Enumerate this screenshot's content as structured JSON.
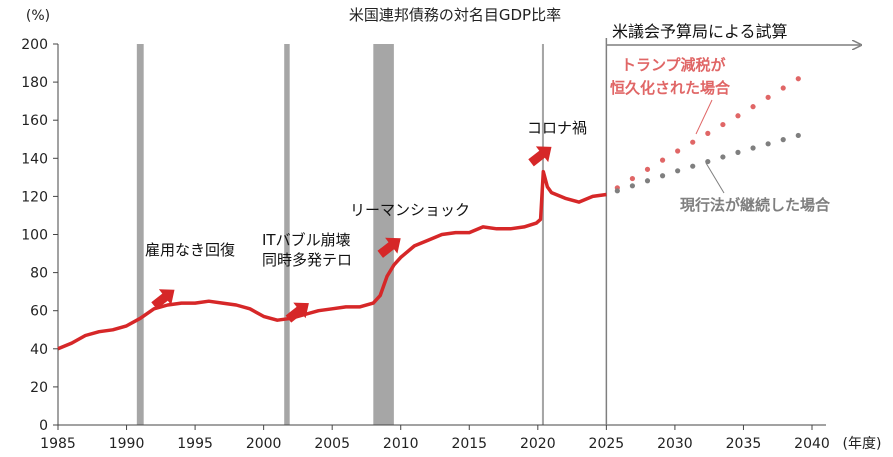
{
  "chart_data": {
    "type": "line",
    "title": "米国連邦債務の対名目GDP比率",
    "ylabel": "(%)",
    "xlabel": "(年度)",
    "ylim": [
      0,
      200
    ],
    "xlim": [
      1985,
      2040
    ],
    "yticks": [
      0,
      20,
      40,
      60,
      80,
      100,
      120,
      140,
      160,
      180,
      200
    ],
    "xticks": [
      1985,
      1990,
      1995,
      2000,
      2005,
      2010,
      2015,
      2020,
      2025,
      2030,
      2035,
      2040
    ],
    "grid": false,
    "colors": {
      "actual": "#d62728",
      "trump": "#e06666",
      "current": "#7f7f7f",
      "recession": "#a6a6a6",
      "forecast_line": "#7f7f7f"
    },
    "recessions": [
      [
        1990.75,
        1991.25
      ],
      [
        2001.5,
        2001.9
      ],
      [
        2008.0,
        2009.5
      ],
      [
        2020.3,
        2020.45
      ]
    ],
    "forecast_start": 2025,
    "forecast_label": "米議会予算局による試算",
    "series": [
      {
        "key": "actual",
        "style": "solid",
        "x": [
          1985,
          1986,
          1987,
          1988,
          1989,
          1990,
          1991,
          1992,
          1993,
          1994,
          1995,
          1996,
          1997,
          1998,
          1999,
          2000,
          2001,
          2002,
          2003,
          2004,
          2005,
          2006,
          2007,
          2008,
          2008.5,
          2009,
          2009.5,
          2010,
          2011,
          2012,
          2013,
          2014,
          2015,
          2016,
          2017,
          2018,
          2019,
          2019.9,
          2020.2,
          2020.4,
          2020.7,
          2021,
          2022,
          2023,
          2024,
          2025
        ],
        "values": [
          40,
          43,
          47,
          49,
          50,
          52,
          56,
          61,
          63,
          64,
          64,
          65,
          64,
          63,
          61,
          57,
          55,
          56,
          58,
          60,
          61,
          62,
          62,
          64,
          68,
          78,
          84,
          88,
          94,
          97,
          100,
          101,
          101,
          104,
          103,
          103,
          104,
          106,
          108,
          133,
          125,
          122,
          119,
          117,
          120,
          121
        ]
      },
      {
        "key": "trump",
        "name": "トランプ減税が恒久化された場合",
        "style": "dotted",
        "x": [
          2025,
          2030,
          2035,
          2039.5
        ],
        "values": [
          121,
          143,
          164,
          184
        ]
      },
      {
        "key": "current",
        "name": "現行法が継続した場合",
        "style": "dotted",
        "x": [
          2025,
          2030,
          2035,
          2039.5
        ],
        "values": [
          121,
          133,
          144,
          153
        ]
      }
    ],
    "annotations": [
      {
        "text": "雇用なき回復",
        "arrow_year": 1993.5,
        "arrow_value": 71
      },
      {
        "text": "ITバブル崩壊",
        "text2": "同時多発テロ",
        "arrow_year": 2003.3,
        "arrow_value": 64
      },
      {
        "text": "リーマンショック",
        "arrow_year": 2010,
        "arrow_value": 98
      },
      {
        "text": "コロナ禍",
        "arrow_year": 2021,
        "arrow_value": 146
      }
    ]
  }
}
